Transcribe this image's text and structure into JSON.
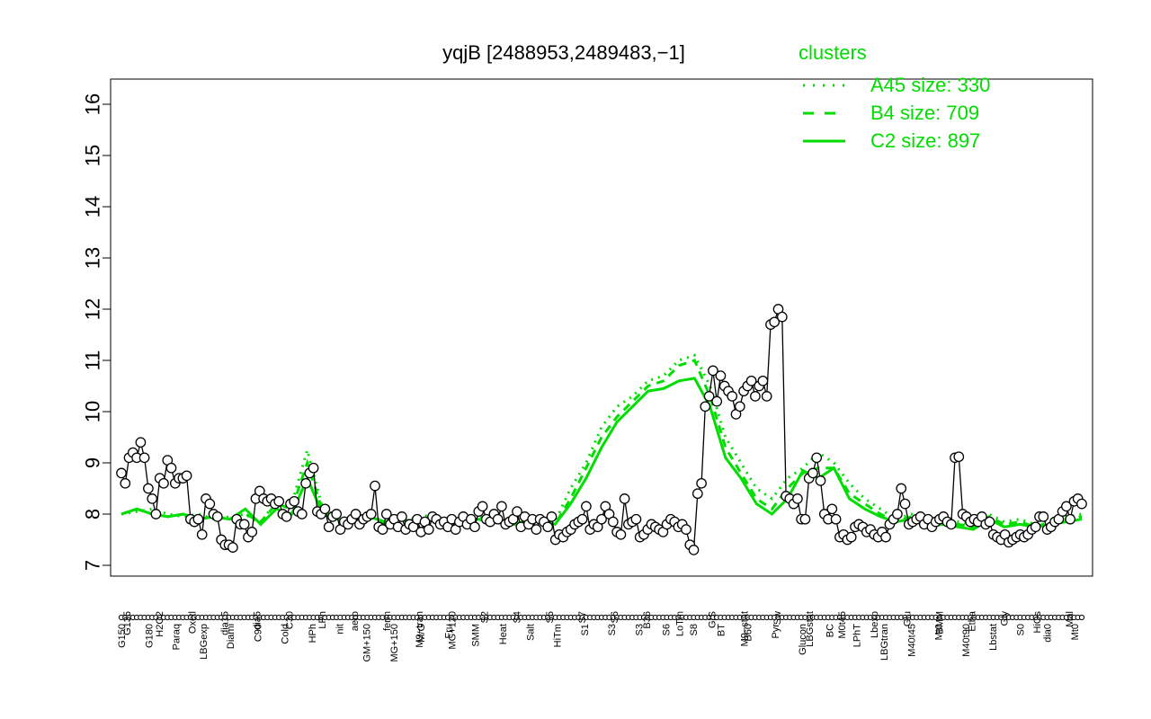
{
  "chart_data": {
    "type": "line",
    "title": "yqjB [2488953,2489483,−1]",
    "xlabel": "",
    "ylabel": "",
    "ylim": [
      7,
      16
    ],
    "yticks": [
      7,
      8,
      9,
      10,
      11,
      12,
      13,
      14,
      15,
      16
    ],
    "legend": {
      "title": "clusters",
      "placement": "top-right",
      "entries": [
        {
          "label": "A45 size: 330",
          "style": "dotted"
        },
        {
          "label": "B4 size: 709",
          "style": "dashed"
        },
        {
          "label": "C2 size: 897",
          "style": "solid"
        }
      ]
    },
    "colors": {
      "clusters": "#00dd00",
      "points": "#000000",
      "point_fill": "#ffffff"
    },
    "x_labels_top": [
      "G135",
      "H2O2",
      "Oxctl",
      "dia15",
      "dia5",
      "C30",
      "LPh",
      "aero",
      "ferm",
      "M9−tran",
      "MG+120",
      "S2",
      "S4",
      "S5",
      "S7",
      "S6",
      "B36",
      "LoTm",
      "G/S",
      "M9−stat",
      "Sw",
      "LBGstat",
      "M0t45",
      "Lbexp",
      "Glu",
      "BMM",
      "Etha",
      "Gly",
      "HiOs",
      "Mal"
    ],
    "x_labels_bottom": [
      "G150",
      "G180",
      "Paraq",
      "LBGexp",
      "Diami",
      "C90",
      "Cold",
      "HPh",
      "nit",
      "GM+150",
      "MG+150",
      "M/G",
      "Fru",
      "SMM",
      "Heat",
      "Salt",
      "HiTm",
      "S1",
      "S3",
      "S3",
      "S6",
      "S8",
      "BT",
      "B60",
      "Pyr",
      "Glucon",
      "BC",
      "LPhT",
      "LBGtran",
      "M40t45",
      "Mt0",
      "M40t90",
      "Lbstat",
      "S0",
      "dia0",
      "Mt0"
    ],
    "series": [
      {
        "values": [
          8.8,
          8.6,
          9.1,
          9.2,
          9.1,
          9.4,
          9.1,
          8.5,
          8.3,
          8.0,
          8.7,
          8.6,
          9.05,
          8.9,
          8.6,
          8.7,
          8.7,
          8.75,
          7.9,
          7.85,
          7.9,
          7.6,
          8.3,
          8.2,
          8.0,
          7.95,
          7.5,
          7.4,
          7.4,
          7.35,
          7.9,
          7.8,
          7.8,
          7.55,
          7.65,
          8.3,
          8.45,
          8.3,
          8.25,
          8.3,
          8.2,
          8.25,
          8.0,
          7.95,
          8.2,
          8.25,
          8.05,
          8.0,
          8.6,
          8.8,
          8.9,
          8.05,
          8.0,
          8.1,
          7.75,
          7.95,
          8.0,
          7.7,
          7.85,
          7.8,
          7.9,
          8.0,
          7.8,
          7.9,
          7.95,
          8.0,
          8.55,
          7.75,
          7.7,
          8.0,
          7.8,
          7.9,
          7.75,
          7.95,
          7.7,
          7.8,
          7.75,
          7.9,
          7.65,
          7.85,
          7.7,
          7.95,
          7.9,
          7.8,
          7.85,
          7.75,
          7.9,
          7.7,
          7.85,
          7.95,
          7.8,
          7.9,
          7.75,
          8.05,
          8.15,
          7.9,
          7.85,
          8.0,
          7.9,
          8.15,
          7.8,
          7.85,
          7.9,
          8.05,
          7.75,
          7.95,
          7.8,
          7.9,
          7.7,
          7.9,
          7.85,
          7.75,
          7.95,
          7.5,
          7.6,
          7.55,
          7.65,
          7.7,
          7.8,
          7.85,
          7.9,
          8.15,
          7.7,
          7.8,
          7.75,
          7.9,
          8.15,
          8.0,
          7.85,
          7.65,
          7.6,
          8.3,
          7.8,
          7.85,
          7.9,
          7.55,
          7.6,
          7.7,
          7.8,
          7.75,
          7.7,
          7.65,
          7.8,
          7.9,
          7.85,
          7.75,
          7.8,
          7.7,
          7.4,
          7.3,
          8.4,
          8.6,
          10.1,
          10.3,
          10.8,
          10.2,
          10.7,
          10.5,
          10.4,
          10.3,
          9.95,
          10.1,
          10.4,
          10.5,
          10.6,
          10.3,
          10.5,
          10.6,
          10.3,
          11.7,
          11.75,
          12.0,
          11.85,
          8.35,
          8.3,
          8.2,
          8.3,
          7.9,
          7.9,
          8.7,
          8.8,
          9.1,
          8.65,
          8.0,
          7.9,
          8.1,
          7.9,
          7.55,
          7.6,
          7.5,
          7.55,
          7.75,
          7.8,
          7.75,
          7.65,
          7.7,
          7.6,
          7.55,
          7.65,
          7.55,
          7.8,
          7.9,
          8.0,
          8.5,
          8.2,
          7.8,
          7.85,
          7.9,
          7.95,
          7.8,
          7.9,
          7.75,
          7.85,
          7.9,
          7.95,
          7.85,
          7.8,
          9.1,
          9.12,
          8.0,
          7.95,
          7.85,
          7.9,
          7.85,
          7.95,
          7.8,
          7.85,
          7.6,
          7.55,
          7.5,
          7.6,
          7.45,
          7.5,
          7.55,
          7.6,
          7.55,
          7.6,
          7.7,
          7.75,
          7.95,
          7.95,
          7.7,
          7.75,
          7.85,
          7.9,
          8.05,
          8.15,
          7.9,
          8.25,
          8.3,
          8.2
        ]
      },
      {
        "name": "A45",
        "values": [
          8.0,
          8.05,
          8.1,
          8.0,
          7.95,
          8.0,
          7.9,
          7.95,
          8.0,
          7.8,
          8.3,
          8.2,
          9.25,
          8.1,
          7.95,
          7.9,
          8.0,
          7.85,
          7.95,
          7.9,
          8.0,
          7.85,
          7.9,
          7.95,
          7.9,
          7.85,
          7.9,
          7.95,
          7.85,
          8.5,
          9.0,
          9.7,
          10.1,
          10.3,
          10.6,
          10.7,
          11.0,
          11.1,
          10.5,
          9.5,
          9.0,
          8.5,
          8.3,
          8.7,
          8.9,
          9.2,
          9.0,
          8.6,
          8.3,
          8.1,
          7.9,
          8.0,
          7.8,
          7.9,
          7.85,
          7.8,
          8.0,
          7.85,
          7.9,
          7.8,
          7.9,
          7.95,
          8.0
        ]
      },
      {
        "name": "B4",
        "values": [
          8.0,
          8.1,
          8.0,
          7.95,
          8.0,
          7.9,
          7.95,
          7.9,
          8.0,
          7.85,
          8.2,
          8.1,
          9.0,
          8.05,
          7.9,
          7.85,
          7.95,
          7.8,
          7.9,
          7.85,
          7.95,
          7.8,
          7.85,
          7.9,
          7.85,
          7.8,
          7.85,
          7.9,
          7.8,
          8.3,
          8.9,
          9.5,
          9.9,
          10.2,
          10.5,
          10.6,
          10.9,
          11.0,
          10.3,
          9.3,
          8.8,
          8.3,
          8.1,
          8.5,
          8.8,
          8.9,
          8.9,
          8.4,
          8.2,
          8.0,
          7.85,
          7.95,
          7.75,
          7.85,
          7.8,
          7.75,
          7.95,
          7.8,
          7.85,
          7.75,
          7.85,
          7.9,
          7.95
        ]
      },
      {
        "name": "C2",
        "values": [
          8.0,
          8.1,
          8.0,
          7.95,
          8.0,
          7.9,
          7.95,
          7.9,
          8.1,
          7.8,
          8.1,
          8.0,
          8.7,
          8.0,
          7.9,
          7.85,
          7.95,
          7.85,
          7.9,
          7.8,
          7.95,
          7.8,
          7.85,
          7.9,
          7.85,
          7.8,
          7.8,
          7.9,
          7.8,
          8.2,
          8.7,
          9.3,
          9.8,
          10.1,
          10.4,
          10.45,
          10.6,
          10.65,
          10.1,
          9.1,
          8.7,
          8.2,
          8.0,
          8.3,
          8.85,
          8.7,
          8.9,
          8.3,
          8.1,
          7.95,
          7.85,
          7.9,
          7.75,
          7.8,
          7.75,
          7.7,
          7.9,
          7.75,
          7.8,
          7.75,
          7.8,
          7.85,
          7.9
        ]
      }
    ]
  }
}
